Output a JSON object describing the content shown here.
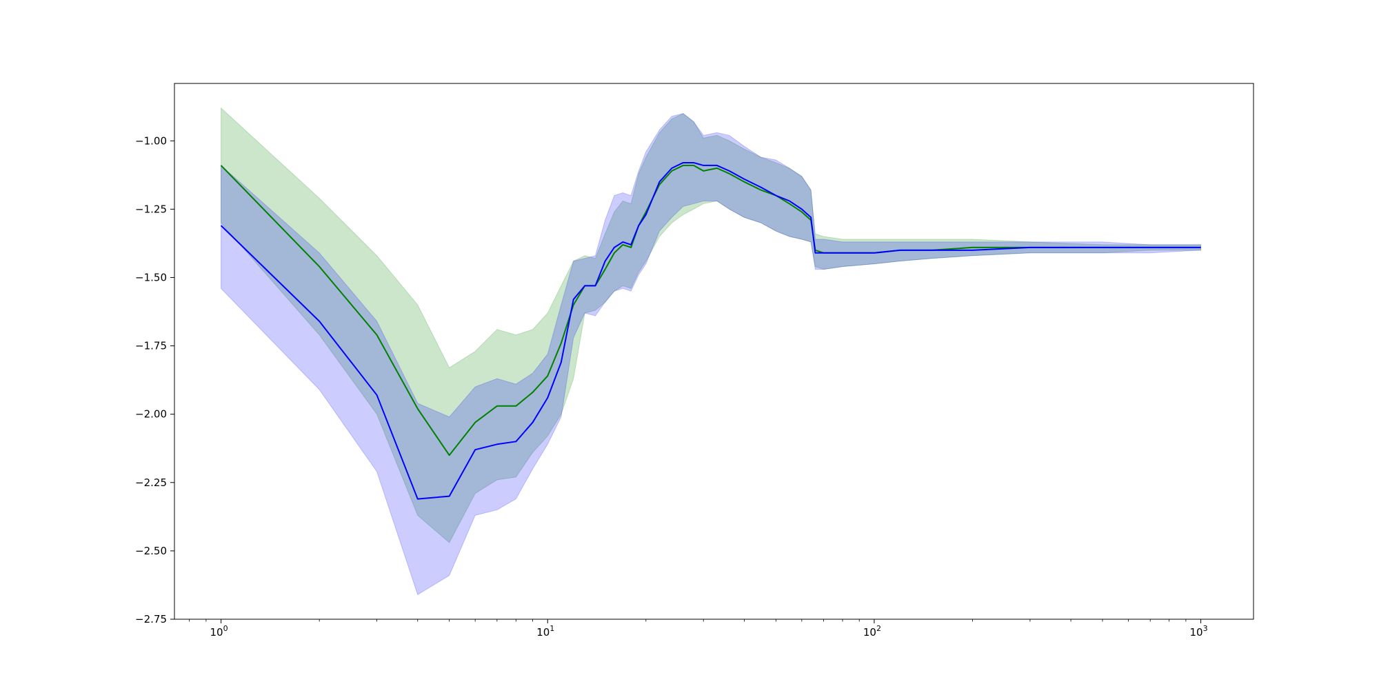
{
  "chart_data": {
    "type": "line",
    "title": "",
    "xlabel": "",
    "ylabel": "",
    "xscale": "log",
    "xlim": [
      0.72,
      1450
    ],
    "ylim": [
      -2.75,
      -0.79
    ],
    "x_ticks": [
      {
        "value": 1,
        "base": "10",
        "exp": "0"
      },
      {
        "value": 10,
        "base": "10",
        "exp": "1"
      },
      {
        "value": 100,
        "base": "10",
        "exp": "2"
      },
      {
        "value": 1000,
        "base": "10",
        "exp": "3"
      }
    ],
    "y_ticks": [
      {
        "value": -1.0,
        "label": "−1.00"
      },
      {
        "value": -1.25,
        "label": "−1.25"
      },
      {
        "value": -1.5,
        "label": "−1.50"
      },
      {
        "value": -1.75,
        "label": "−1.75"
      },
      {
        "value": -2.0,
        "label": "−2.00"
      },
      {
        "value": -2.25,
        "label": "−2.25"
      },
      {
        "value": -2.5,
        "label": "−2.50"
      },
      {
        "value": -2.75,
        "label": "−2.75"
      }
    ],
    "grid": false,
    "series": [
      {
        "color": "#008000",
        "band_color": "#008000",
        "band_opacity": 0.2,
        "x": [
          1,
          2,
          3,
          4,
          5,
          6,
          7,
          8,
          9,
          10,
          11,
          12,
          13,
          14,
          15,
          16,
          17,
          18,
          19,
          20,
          22,
          24,
          26,
          28,
          30,
          33,
          36,
          40,
          45,
          50,
          55,
          60,
          64,
          66,
          70,
          80,
          100,
          120,
          150,
          200,
          300,
          500,
          700,
          1000
        ],
        "y": [
          -1.09,
          -1.46,
          -1.71,
          -1.98,
          -2.15,
          -2.03,
          -1.97,
          -1.97,
          -1.92,
          -1.86,
          -1.74,
          -1.6,
          -1.53,
          -1.53,
          -1.47,
          -1.41,
          -1.38,
          -1.39,
          -1.31,
          -1.26,
          -1.16,
          -1.11,
          -1.09,
          -1.09,
          -1.11,
          -1.1,
          -1.12,
          -1.15,
          -1.18,
          -1.2,
          -1.23,
          -1.26,
          -1.29,
          -1.4,
          -1.41,
          -1.41,
          -1.41,
          -1.4,
          -1.4,
          -1.39,
          -1.39,
          -1.39,
          -1.39,
          -1.39
        ],
        "lower": [
          -1.3,
          -1.71,
          -2.0,
          -2.37,
          -2.47,
          -2.29,
          -2.24,
          -2.23,
          -2.14,
          -2.08,
          -2.0,
          -1.87,
          -1.63,
          -1.62,
          -1.59,
          -1.55,
          -1.53,
          -1.54,
          -1.48,
          -1.44,
          -1.35,
          -1.3,
          -1.27,
          -1.25,
          -1.23,
          -1.22,
          -1.25,
          -1.28,
          -1.3,
          -1.33,
          -1.35,
          -1.36,
          -1.37,
          -1.46,
          -1.47,
          -1.46,
          -1.45,
          -1.44,
          -1.43,
          -1.42,
          -1.41,
          -1.41,
          -1.4,
          -1.4
        ],
        "upper": [
          -0.88,
          -1.21,
          -1.42,
          -1.6,
          -1.83,
          -1.77,
          -1.69,
          -1.71,
          -1.69,
          -1.63,
          -1.53,
          -1.44,
          -1.42,
          -1.43,
          -1.34,
          -1.26,
          -1.22,
          -1.23,
          -1.12,
          -1.06,
          -0.97,
          -0.92,
          -0.9,
          -0.93,
          -0.99,
          -0.98,
          -1.0,
          -1.03,
          -1.06,
          -1.08,
          -1.1,
          -1.13,
          -1.18,
          -1.34,
          -1.35,
          -1.36,
          -1.36,
          -1.36,
          -1.36,
          -1.36,
          -1.37,
          -1.38,
          -1.38,
          -1.38
        ]
      },
      {
        "color": "#0000ff",
        "band_color": "#0000ff",
        "band_opacity": 0.2,
        "x": [
          1,
          2,
          3,
          4,
          5,
          6,
          7,
          8,
          9,
          10,
          11,
          12,
          13,
          14,
          15,
          16,
          17,
          18,
          19,
          20,
          22,
          24,
          26,
          28,
          30,
          33,
          36,
          40,
          45,
          50,
          55,
          60,
          64,
          66,
          70,
          80,
          100,
          120,
          150,
          200,
          300,
          500,
          700,
          1000
        ],
        "y": [
          -1.31,
          -1.66,
          -1.93,
          -2.31,
          -2.3,
          -2.13,
          -2.11,
          -2.1,
          -2.03,
          -1.94,
          -1.81,
          -1.58,
          -1.53,
          -1.53,
          -1.44,
          -1.39,
          -1.37,
          -1.38,
          -1.31,
          -1.27,
          -1.15,
          -1.1,
          -1.08,
          -1.08,
          -1.09,
          -1.09,
          -1.11,
          -1.14,
          -1.17,
          -1.2,
          -1.22,
          -1.25,
          -1.28,
          -1.41,
          -1.41,
          -1.41,
          -1.41,
          -1.4,
          -1.4,
          -1.4,
          -1.39,
          -1.39,
          -1.39,
          -1.39
        ],
        "lower": [
          -1.54,
          -1.91,
          -2.21,
          -2.66,
          -2.59,
          -2.37,
          -2.35,
          -2.31,
          -2.2,
          -2.11,
          -2.01,
          -1.72,
          -1.63,
          -1.64,
          -1.59,
          -1.55,
          -1.54,
          -1.55,
          -1.49,
          -1.45,
          -1.33,
          -1.28,
          -1.24,
          -1.23,
          -1.22,
          -1.22,
          -1.25,
          -1.28,
          -1.3,
          -1.33,
          -1.35,
          -1.36,
          -1.37,
          -1.47,
          -1.47,
          -1.46,
          -1.45,
          -1.44,
          -1.43,
          -1.42,
          -1.41,
          -1.41,
          -1.41,
          -1.4
        ],
        "upper": [
          -1.09,
          -1.41,
          -1.66,
          -1.96,
          -2.01,
          -1.9,
          -1.87,
          -1.89,
          -1.85,
          -1.78,
          -1.6,
          -1.44,
          -1.43,
          -1.42,
          -1.29,
          -1.2,
          -1.19,
          -1.2,
          -1.11,
          -1.04,
          -0.96,
          -0.91,
          -0.9,
          -0.93,
          -0.98,
          -0.97,
          -0.98,
          -1.02,
          -1.06,
          -1.07,
          -1.1,
          -1.13,
          -1.18,
          -1.36,
          -1.36,
          -1.37,
          -1.37,
          -1.37,
          -1.37,
          -1.37,
          -1.37,
          -1.37,
          -1.38,
          -1.38
        ]
      }
    ]
  }
}
